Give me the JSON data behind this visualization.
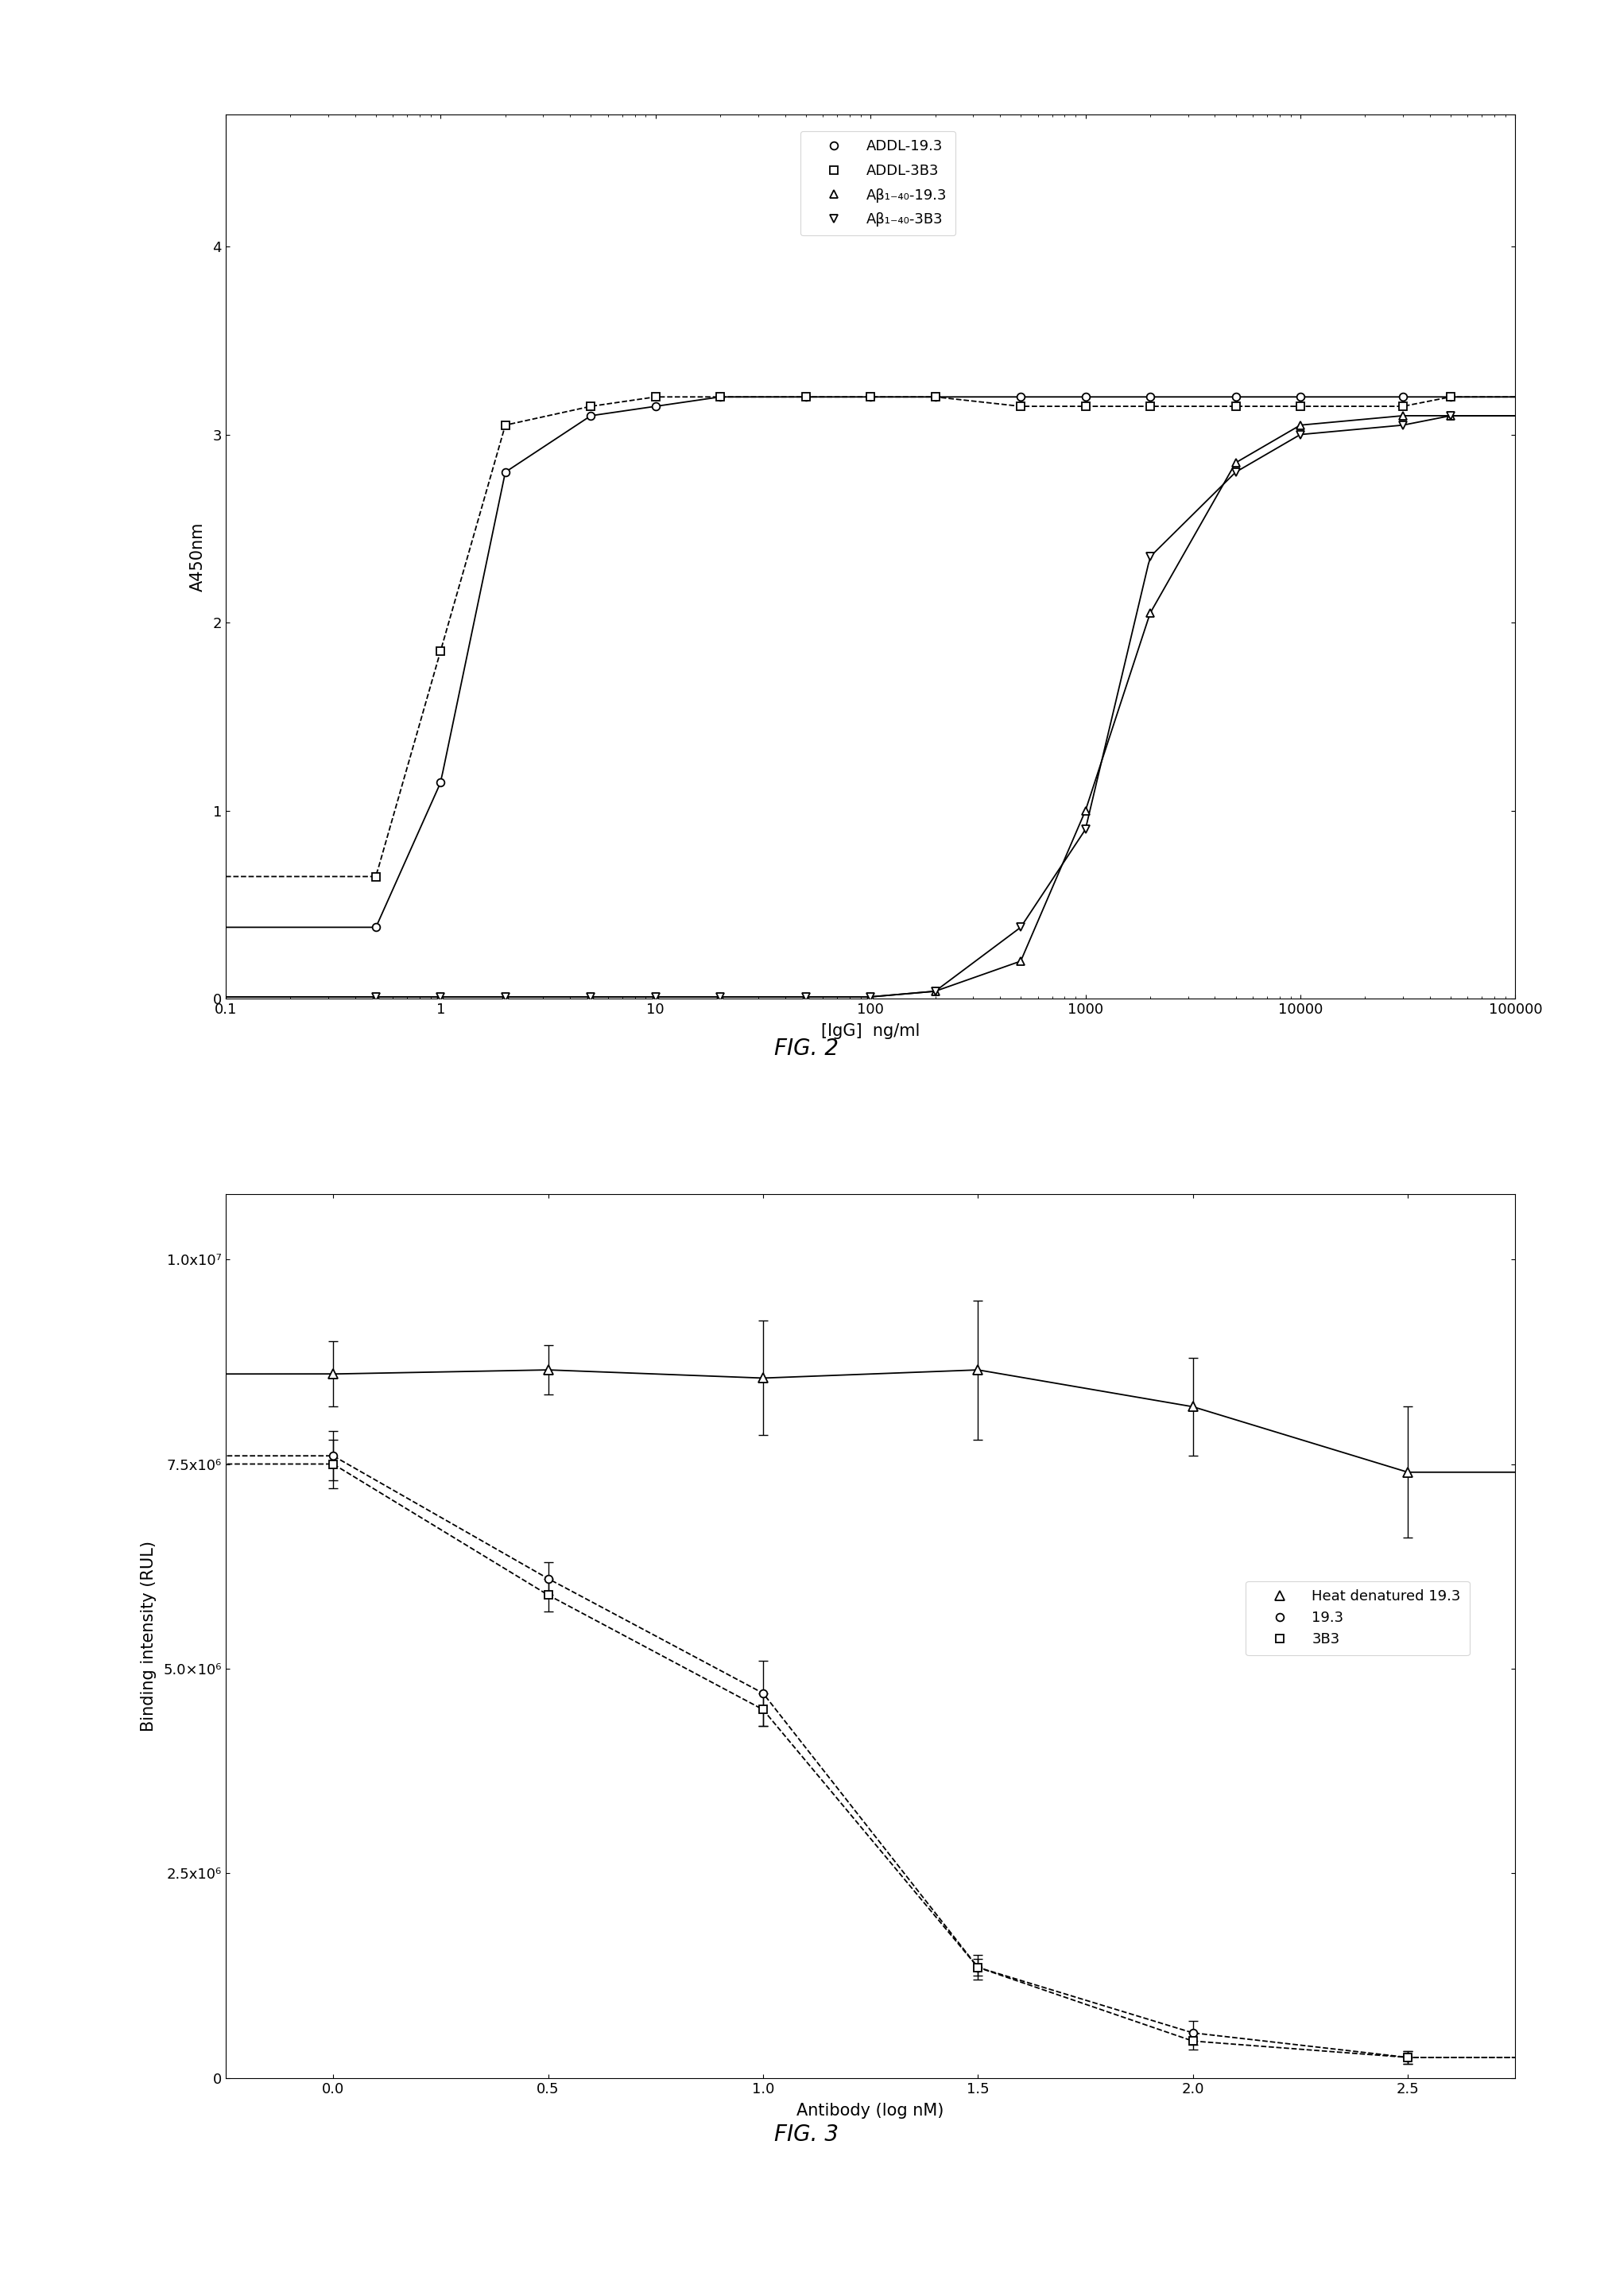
{
  "fig2": {
    "title": "FIG. 2",
    "xlabel": "[IgG]  ng/ml",
    "ylabel": "A450nm",
    "xlim_log": [
      -1,
      5
    ],
    "ylim": [
      0,
      4.7
    ],
    "yticks": [
      0,
      1,
      2,
      3,
      4
    ],
    "series": {
      "ADDL_193": {
        "label": "ADDL-19.3",
        "marker": "o",
        "linestyle": "-",
        "x": [
          0.5,
          1.0,
          2.0,
          5.0,
          10.0,
          20.0,
          50.0,
          100.0,
          200.0,
          500.0,
          1000.0,
          2000.0,
          5000.0,
          10000.0,
          30000.0,
          50000.0
        ],
        "y": [
          0.38,
          1.15,
          2.8,
          3.1,
          3.15,
          3.2,
          3.2,
          3.2,
          3.2,
          3.2,
          3.2,
          3.2,
          3.2,
          3.2,
          3.2,
          3.2
        ]
      },
      "ADDL_3B3": {
        "label": "ADDL-3B3",
        "marker": "s",
        "linestyle": "--",
        "x": [
          0.5,
          1.0,
          2.0,
          5.0,
          10.0,
          20.0,
          50.0,
          100.0,
          200.0,
          500.0,
          1000.0,
          2000.0,
          5000.0,
          10000.0,
          30000.0,
          50000.0
        ],
        "y": [
          0.65,
          1.85,
          3.05,
          3.15,
          3.2,
          3.2,
          3.2,
          3.2,
          3.2,
          3.15,
          3.15,
          3.15,
          3.15,
          3.15,
          3.15,
          3.2
        ]
      },
      "Ab_193": {
        "label": "Aβ₁₋₄₀-19.3",
        "marker": "^",
        "linestyle": "-",
        "x": [
          0.5,
          1.0,
          2.0,
          5.0,
          10.0,
          20.0,
          50.0,
          100.0,
          200.0,
          500.0,
          1000.0,
          2000.0,
          5000.0,
          10000.0,
          30000.0,
          50000.0
        ],
        "y": [
          0.01,
          0.01,
          0.01,
          0.01,
          0.01,
          0.01,
          0.01,
          0.01,
          0.04,
          0.2,
          1.0,
          2.05,
          2.85,
          3.05,
          3.1,
          3.1
        ]
      },
      "Ab_3B3": {
        "label": "Aβ₁₋₄₀-3B3",
        "marker": "v",
        "linestyle": "-",
        "x": [
          0.5,
          1.0,
          2.0,
          5.0,
          10.0,
          20.0,
          50.0,
          100.0,
          200.0,
          500.0,
          1000.0,
          2000.0,
          5000.0,
          10000.0,
          30000.0,
          50000.0
        ],
        "y": [
          0.01,
          0.01,
          0.01,
          0.01,
          0.01,
          0.01,
          0.01,
          0.01,
          0.04,
          0.38,
          0.9,
          2.35,
          2.8,
          3.0,
          3.05,
          3.1
        ]
      }
    }
  },
  "fig3": {
    "title": "FIG. 3",
    "xlabel": "Antibody (log nM)",
    "ylabel": "Binding intensity (RUL)",
    "xlim": [
      -0.25,
      2.75
    ],
    "ylim": [
      0,
      10800000.0
    ],
    "xticks": [
      0.0,
      0.5,
      1.0,
      1.5,
      2.0,
      2.5
    ],
    "yticks": [
      0,
      2500000,
      5000000,
      7500000,
      10000000
    ],
    "ytick_labels": [
      "0",
      "2.5x10⁶",
      "5.0×10⁶",
      "7.5x10⁶",
      "1.0x10⁷"
    ],
    "series": {
      "heat_193": {
        "label": "Heat denatured 19.3",
        "marker": "^",
        "linestyle": "-",
        "x": [
          0.0,
          0.5,
          1.0,
          1.5,
          2.0,
          2.5
        ],
        "y": [
          8600000,
          8650000,
          8550000,
          8650000,
          8200000,
          7400000
        ],
        "yerr": [
          400000,
          300000,
          700000,
          850000,
          600000,
          800000
        ]
      },
      "s193": {
        "label": "19.3",
        "marker": "o",
        "linestyle": "--",
        "x": [
          0.0,
          0.5,
          1.0,
          1.5,
          2.0,
          2.5
        ],
        "y": [
          7600000,
          6100000,
          4700000,
          1350000,
          550000,
          250000
        ],
        "yerr": [
          300000,
          200000,
          400000,
          150000,
          150000,
          80000
        ]
      },
      "s3B3": {
        "label": "3B3",
        "marker": "s",
        "linestyle": "--",
        "x": [
          0.0,
          0.5,
          1.0,
          1.5,
          2.0,
          2.5
        ],
        "y": [
          7500000,
          5900000,
          4500000,
          1350000,
          450000,
          250000
        ],
        "yerr": [
          300000,
          200000,
          200000,
          100000,
          100000,
          80000
        ]
      }
    }
  },
  "background_color": "#ffffff",
  "font_color": "#000000"
}
